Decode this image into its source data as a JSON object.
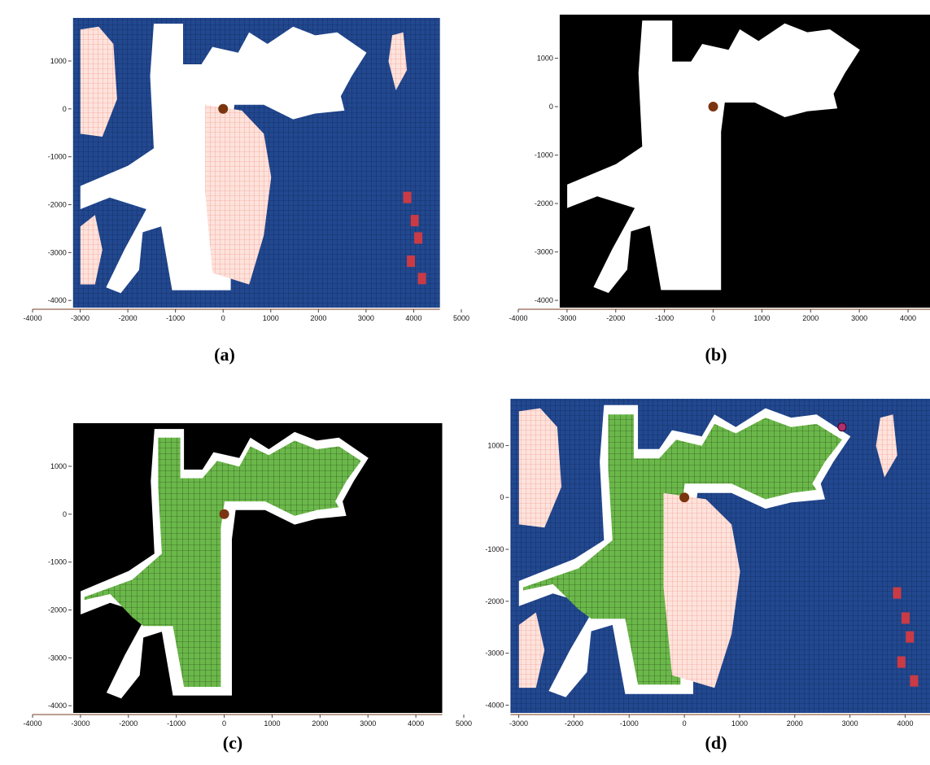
{
  "figure": {
    "panels": [
      {
        "id": "a",
        "caption": "(a)",
        "style": "occupancy",
        "x_ticks": [
          "-4000",
          "-3000",
          "-2000",
          "-1000",
          "0",
          "1000",
          "2000",
          "3000",
          "4000",
          "5000"
        ],
        "y_ticks": [
          "1000",
          "0",
          "-1000",
          "-2000",
          "-3000",
          "-4000"
        ]
      },
      {
        "id": "b",
        "caption": "(b)",
        "style": "binary",
        "x_ticks": [
          "-4000",
          "-3000",
          "-2000",
          "-1000",
          "0",
          "1000",
          "2000",
          "3000",
          "4000"
        ],
        "y_ticks": [
          "1000",
          "0",
          "-1000",
          "-2000",
          "-3000",
          "-4000"
        ]
      },
      {
        "id": "c",
        "caption": "(c)",
        "style": "path",
        "x_ticks": [
          "-4000",
          "-3000",
          "-2000",
          "-1000",
          "0",
          "1000",
          "2000",
          "3000",
          "4000",
          "5000"
        ],
        "y_ticks": [
          "1000",
          "0",
          "-1000",
          "-2000",
          "-3000",
          "-4000"
        ]
      },
      {
        "id": "d",
        "caption": "(d)",
        "style": "combined",
        "x_ticks": [
          "-3000",
          "-2000",
          "-1000",
          "0",
          "1000",
          "2000",
          "3000",
          "4000"
        ],
        "y_ticks": [
          "1000",
          "0",
          "-1000",
          "-2000",
          "-3000",
          "-4000"
        ]
      }
    ],
    "colors": {
      "obstacle_blue": "#22488f",
      "unknown_pink": "#f7b2a6",
      "free": "#ffffff",
      "binary_black": "#000000",
      "path_green": "#6bb84a",
      "robot_brown": "#7b3410",
      "goal_magenta": "#b0306c",
      "hot_red": "#e83a3a"
    }
  }
}
